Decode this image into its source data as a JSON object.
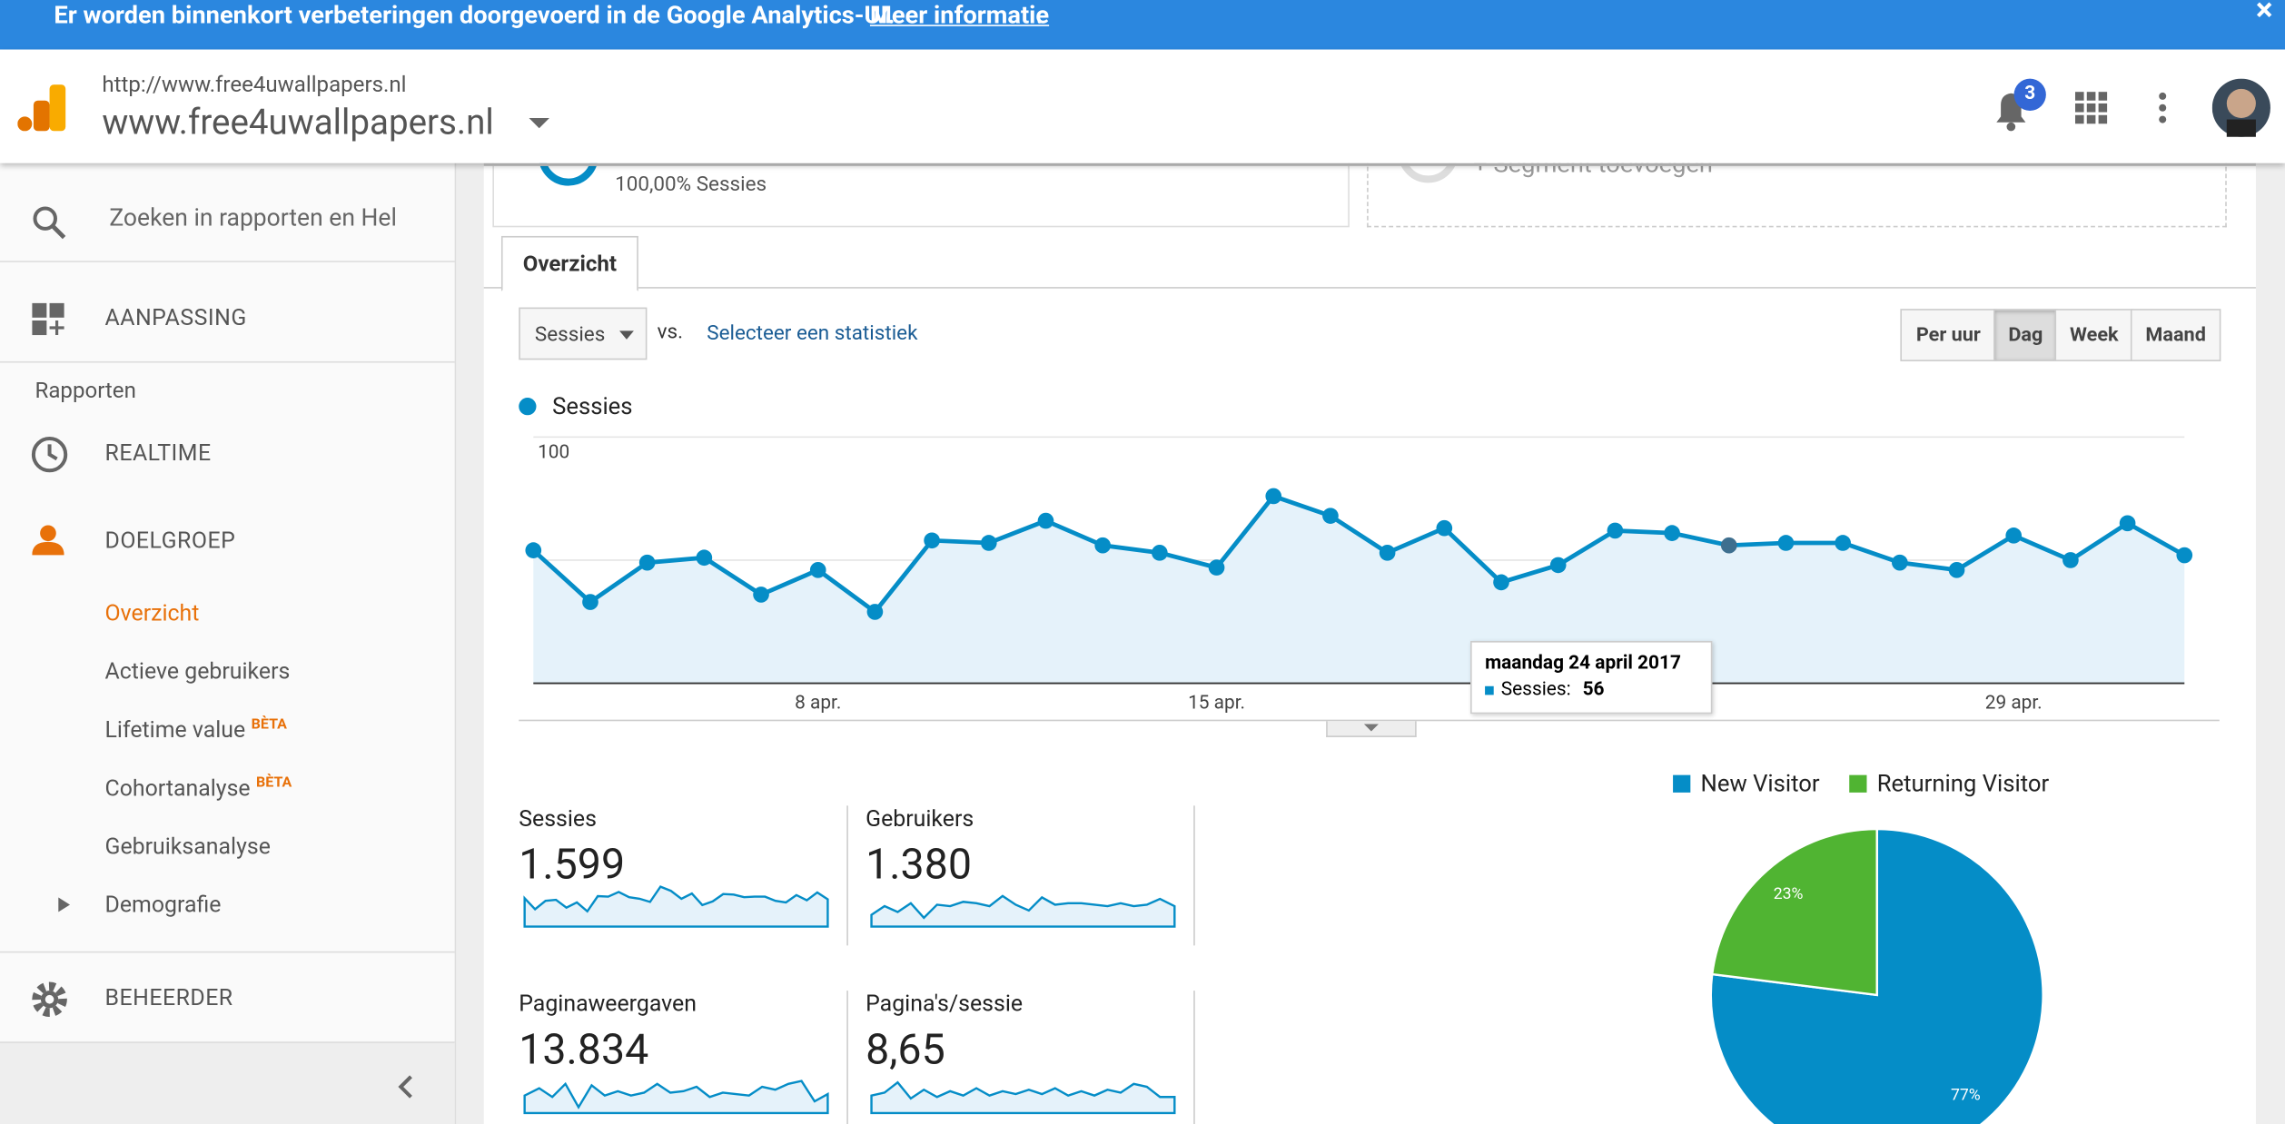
{
  "banner": {
    "text": "Er worden binnenkort verbeteringen doorgevoerd in de Google Analytics-UI.",
    "link": "Meer informatie",
    "close": "×"
  },
  "header": {
    "url": "http://www.free4uwallpapers.nl",
    "property": "www.free4uwallpapers.nl",
    "notifications": "3"
  },
  "sidebar": {
    "search": "Zoeken in rapporten en Help",
    "customization": "AANPASSING",
    "reports_heading": "Rapporten",
    "realtime": "REALTIME",
    "audience": "DOELGROEP",
    "audience_items": [
      "Overzicht",
      "Actieve gebruikers",
      "Lifetime value",
      "Cohortanalyse",
      "Gebruiksanalyse",
      "Demografie"
    ],
    "beta": "BÈTA",
    "admin": "BEHEERDER"
  },
  "segments": {
    "all_share": "100,00% Sessies",
    "add": "+ Segment toevoegen"
  },
  "tabs": [
    "Overzicht"
  ],
  "controls": {
    "metric": "Sessies",
    "vs": "vs.",
    "select": "Selecteer een statistiek",
    "periods": [
      "Per uur",
      "Dag",
      "Week",
      "Maand"
    ]
  },
  "chart_data": [
    {
      "type": "line",
      "series": [
        {
          "name": "Sessies",
          "color": "#058dc7",
          "values": [
            54,
            33,
            49,
            51,
            36,
            46,
            29,
            58,
            57,
            66,
            56,
            53,
            47,
            76,
            68,
            53,
            63,
            41,
            48,
            62,
            61,
            56,
            57,
            57,
            49,
            46,
            60,
            50,
            65,
            52
          ]
        }
      ],
      "categories": [
        null,
        null,
        null,
        null,
        null,
        "8 apr.",
        null,
        null,
        null,
        null,
        null,
        null,
        "15 apr.",
        null,
        null,
        null,
        null,
        null,
        null,
        null,
        null,
        null,
        null,
        null,
        null,
        null,
        "29 apr.",
        null,
        null,
        null
      ],
      "ylim": [
        0,
        100
      ],
      "yticks": [
        50,
        100
      ],
      "grid": true,
      "tooltip": {
        "title": "maandag 24 april 2017",
        "label": "Sessies:",
        "value": 56,
        "index": 21
      }
    },
    {
      "type": "pie",
      "categories": [
        "New Visitor",
        "Returning Visitor"
      ],
      "values": [
        77,
        23
      ],
      "value_labels": [
        "77%",
        "23%"
      ],
      "colors": [
        "#058dc7",
        "#50b432"
      ],
      "legend": "top"
    }
  ],
  "metrics": [
    {
      "label": "Sessies",
      "value": "1.599"
    },
    {
      "label": "Gebruikers",
      "value": "1.380"
    },
    {
      "label": "Paginaweergaven",
      "value": "13.834"
    },
    {
      "label": "Pagina's/sessie",
      "value": "8,65"
    }
  ]
}
